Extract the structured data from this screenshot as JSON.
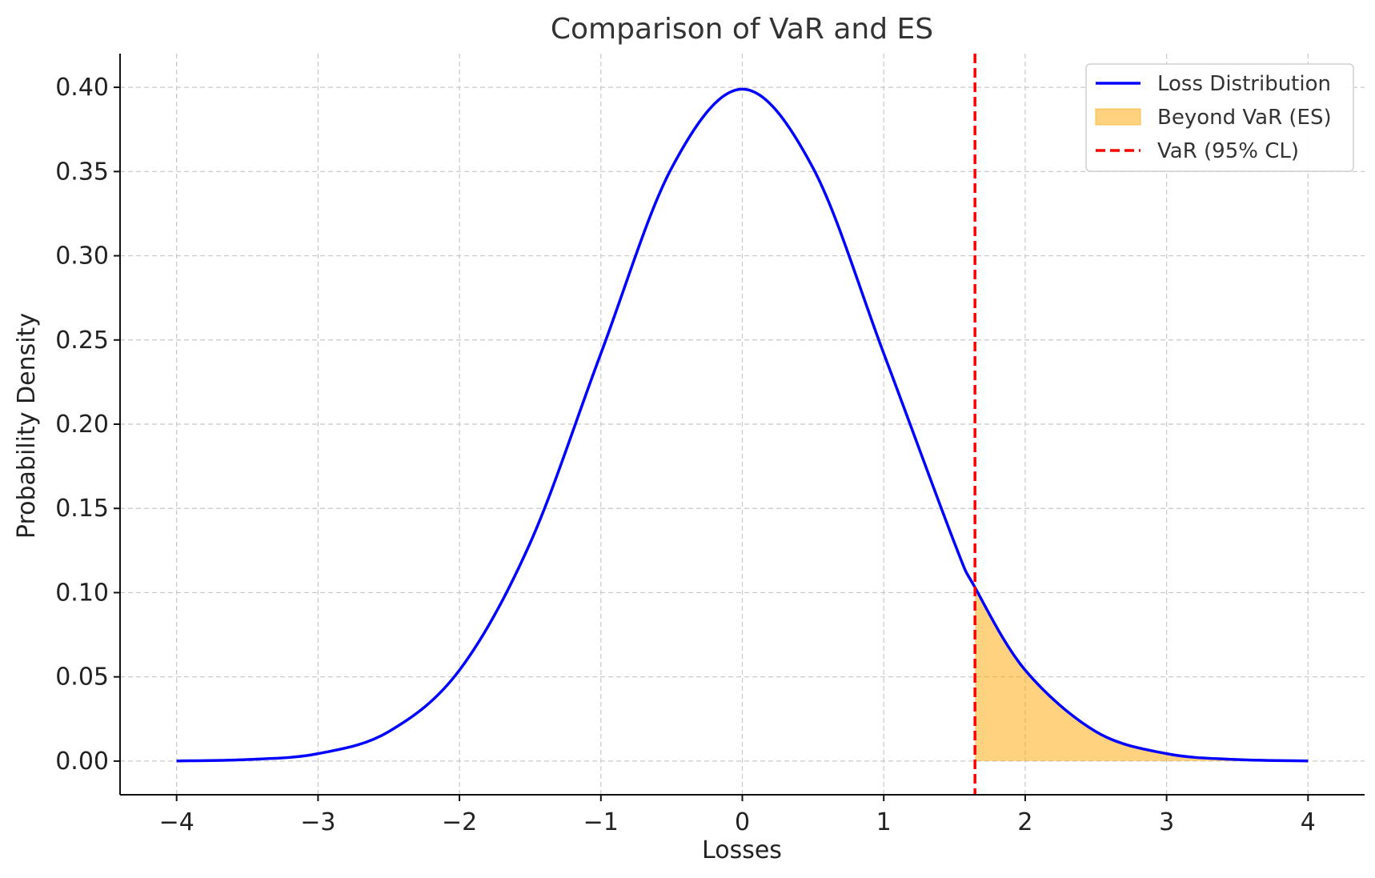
{
  "chart_data": {
    "type": "line",
    "title": "Comparison of VaR and ES",
    "xlabel": "Losses",
    "ylabel": "Probability Density",
    "xlim": [
      -4.4,
      4.4
    ],
    "ylim": [
      -0.02,
      0.42
    ],
    "x_ticks": [
      -4,
      -3,
      -2,
      -1,
      0,
      1,
      2,
      3,
      4
    ],
    "x_tick_labels": [
      "−4",
      "−3",
      "−2",
      "−1",
      "0",
      "1",
      "2",
      "3",
      "4"
    ],
    "y_ticks": [
      0.0,
      0.05,
      0.1,
      0.15,
      0.2,
      0.25,
      0.3,
      0.35,
      0.4
    ],
    "y_tick_labels": [
      "0.00",
      "0.05",
      "0.10",
      "0.15",
      "0.20",
      "0.25",
      "0.30",
      "0.35",
      "0.40"
    ],
    "grid": true,
    "legend_position": "top-right",
    "series": [
      {
        "name": "Loss Distribution",
        "kind": "line",
        "color": "#0000ff",
        "x": [
          -4.0,
          -3.5,
          -3.0,
          -2.5,
          -2.0,
          -1.5,
          -1.0,
          -0.5,
          0.0,
          0.5,
          1.0,
          1.5,
          1.645,
          2.0,
          2.5,
          3.0,
          3.5,
          4.0
        ],
        "y": [
          0.0001,
          0.0009,
          0.0044,
          0.0175,
          0.054,
          0.1295,
          0.242,
          0.3521,
          0.3989,
          0.3521,
          0.242,
          0.1295,
          0.1031,
          0.054,
          0.0175,
          0.0044,
          0.0009,
          0.0001
        ]
      },
      {
        "name": "Beyond VaR (ES)",
        "kind": "area",
        "color": "#ffa500",
        "x": [
          1.645,
          2.0,
          2.5,
          3.0,
          3.5,
          4.0
        ],
        "y": [
          0.1031,
          0.054,
          0.0175,
          0.0044,
          0.0009,
          0.0001
        ]
      },
      {
        "name": "VaR (95% CL)",
        "kind": "vline",
        "color": "#ff0000",
        "x": 1.645
      }
    ]
  }
}
